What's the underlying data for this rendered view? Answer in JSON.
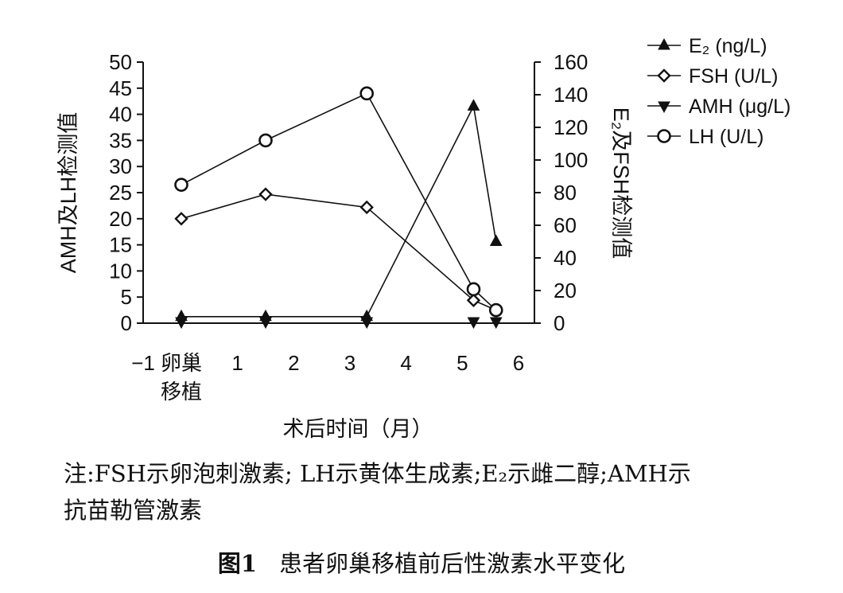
{
  "chart_data": {
    "type": "line",
    "x_axis": {
      "label": "术后时间（月）",
      "ticks": [
        {
          "value": -1,
          "label": "−1"
        },
        {
          "value": 0,
          "label": "卵巢\n移植"
        },
        {
          "value": 1,
          "label": "1"
        },
        {
          "value": 2,
          "label": "2"
        },
        {
          "value": 3,
          "label": "3"
        },
        {
          "value": 4,
          "label": "4"
        },
        {
          "value": 5,
          "label": "5"
        },
        {
          "value": 6,
          "label": "6"
        }
      ],
      "range": [
        -1,
        6
      ]
    },
    "y_left": {
      "label": "AMH及LH检测值",
      "range": [
        0,
        50
      ],
      "ticks": [
        0,
        5,
        10,
        15,
        20,
        25,
        30,
        35,
        40,
        45,
        50
      ]
    },
    "y_right": {
      "label": "E₂及FSH检测值",
      "range": [
        0,
        160
      ],
      "ticks": [
        0,
        20,
        40,
        60,
        80,
        100,
        120,
        140,
        160
      ]
    },
    "legend_position": "top-right",
    "series": [
      {
        "name": "E₂ (ng/L)",
        "axis": "right",
        "marker": "triangle-up",
        "x": [
          0,
          1.5,
          3.3,
          5.2,
          5.6
        ],
        "y": [
          4,
          4,
          4,
          133,
          50
        ]
      },
      {
        "name": "FSH (U/L)",
        "axis": "right",
        "marker": "diamond",
        "x": [
          0,
          1.5,
          3.3,
          5.2,
          5.6
        ],
        "y": [
          64,
          79,
          71,
          14,
          8
        ]
      },
      {
        "name": "AMH (μg/L)",
        "axis": "left",
        "marker": "triangle-down",
        "x": [
          0,
          1.5,
          3.3,
          5.2,
          5.6
        ],
        "y": [
          0.3,
          0.3,
          0.3,
          0.3,
          0.3
        ]
      },
      {
        "name": "LH (U/L)",
        "axis": "left",
        "marker": "circle",
        "x": [
          0,
          1.5,
          3.3,
          5.2,
          5.6
        ],
        "y": [
          26.5,
          35,
          44,
          6.5,
          2.5
        ]
      }
    ]
  },
  "note": {
    "line1": "注:FSH示卵泡刺激素; LH示黄体生成素;E₂示雌二醇;AMH示",
    "line2": "抗苗勒管激素"
  },
  "figure": {
    "number": "图1",
    "title": "患者卵巢移植前后性激素水平变化"
  }
}
